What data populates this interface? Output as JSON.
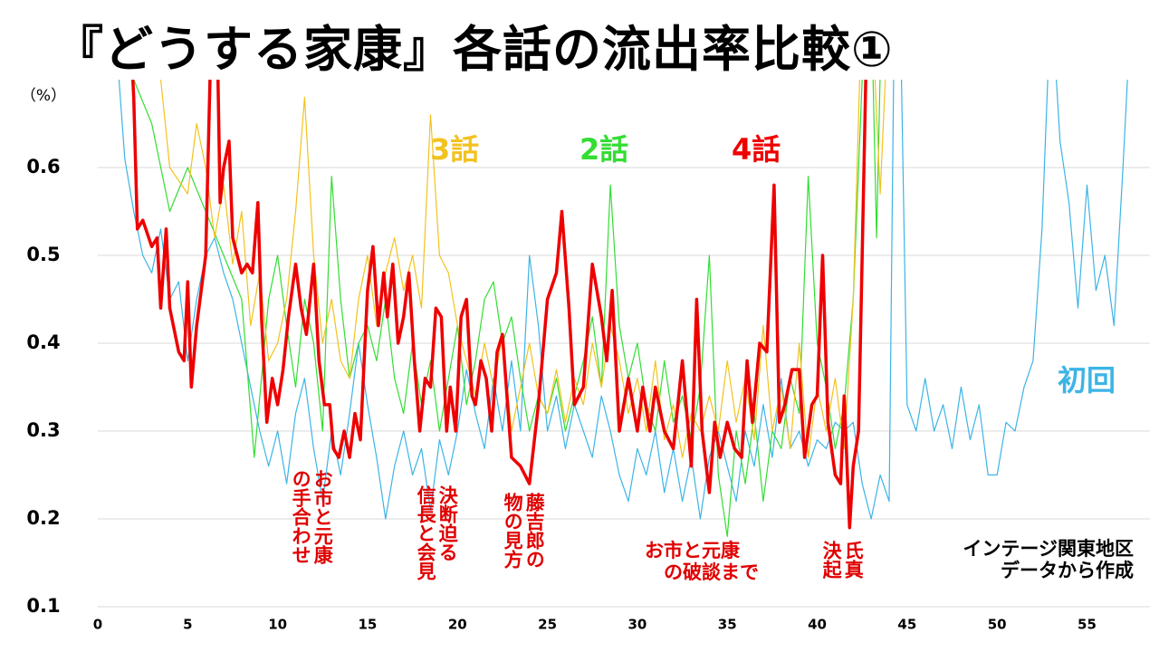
{
  "chart_data": {
    "type": "line",
    "title": "『どうする家康』各話の流出率比較①",
    "ylabel": "（%）",
    "xlim": [
      0,
      58.5
    ],
    "xticks": [
      0,
      5,
      10,
      15,
      20,
      25,
      30,
      35,
      40,
      45,
      50,
      55
    ],
    "ylim": [
      0.1,
      0.7
    ],
    "yticks": [
      0.1,
      0.2,
      0.3,
      0.4,
      0.5,
      0.6
    ],
    "grid": true,
    "annotations": [
      "お市と元康\nの手合わせ",
      "決断迫る\n信長と会見",
      "藤吉郎の\n物の見方",
      "お市と元康\n　の破談まで",
      "氏真\n決起",
      "インテージ関東地区\nデータから作成"
    ],
    "series": [
      {
        "name": "初回",
        "color": "#3cb4e6",
        "width": 1.2,
        "x": [
          1,
          1.5,
          2,
          2.5,
          3,
          3.5,
          4,
          4.5,
          5,
          5.5,
          6,
          6.5,
          7,
          7.5,
          8,
          8.5,
          9,
          9.5,
          10,
          10.5,
          11,
          11.5,
          12,
          12.5,
          13,
          13.5,
          14,
          14.5,
          15,
          15.5,
          16,
          16.5,
          17,
          17.5,
          18,
          18.5,
          19,
          19.5,
          20,
          20.5,
          21,
          21.5,
          22,
          22.5,
          23,
          23.5,
          24,
          24.5,
          25,
          25.5,
          26,
          26.5,
          27,
          27.5,
          28,
          28.5,
          29,
          29.5,
          30,
          30.5,
          31,
          31.5,
          32,
          32.5,
          33,
          33.5,
          34,
          34.5,
          35,
          35.5,
          36,
          36.5,
          37,
          37.5,
          38,
          38.5,
          39,
          39.5,
          40,
          40.5,
          41,
          41.5,
          42,
          42.5,
          43,
          43.5,
          44,
          44.3,
          44.6,
          45,
          45.5,
          46,
          46.5,
          47,
          47.5,
          48,
          48.5,
          49,
          49.5,
          50,
          50.5,
          51,
          51.5,
          52,
          52.5,
          53,
          53.5,
          54,
          54.5,
          55,
          55.5,
          56,
          56.5,
          57,
          57.5
        ],
        "values": [
          0.75,
          0.61,
          0.55,
          0.5,
          0.48,
          0.53,
          0.45,
          0.47,
          0.38,
          0.45,
          0.5,
          0.52,
          0.48,
          0.45,
          0.4,
          0.35,
          0.3,
          0.26,
          0.3,
          0.24,
          0.32,
          0.36,
          0.28,
          0.22,
          0.3,
          0.25,
          0.32,
          0.4,
          0.33,
          0.27,
          0.2,
          0.26,
          0.3,
          0.25,
          0.28,
          0.21,
          0.29,
          0.25,
          0.3,
          0.37,
          0.32,
          0.28,
          0.36,
          0.3,
          0.38,
          0.3,
          0.5,
          0.42,
          0.3,
          0.34,
          0.28,
          0.33,
          0.3,
          0.27,
          0.34,
          0.3,
          0.25,
          0.22,
          0.28,
          0.25,
          0.3,
          0.23,
          0.28,
          0.22,
          0.27,
          0.2,
          0.27,
          0.3,
          0.26,
          0.22,
          0.3,
          0.26,
          0.33,
          0.27,
          0.36,
          0.28,
          0.3,
          0.26,
          0.29,
          0.28,
          0.31,
          0.3,
          0.31,
          0.24,
          0.2,
          0.25,
          0.22,
          0.8,
          0.8,
          0.33,
          0.3,
          0.36,
          0.3,
          0.33,
          0.28,
          0.35,
          0.29,
          0.33,
          0.25,
          0.25,
          0.31,
          0.3,
          0.35,
          0.38,
          0.53,
          0.8,
          0.63,
          0.56,
          0.44,
          0.58,
          0.46,
          0.5,
          0.42,
          0.6,
          0.8
        ]
      },
      {
        "name": "2話",
        "color": "#33dd33",
        "width": 1.2,
        "x": [
          1,
          2,
          3,
          4,
          5,
          6,
          7,
          8,
          8.7,
          9.5,
          10,
          10.5,
          11,
          11.5,
          12,
          12.5,
          13,
          13.5,
          14,
          14.5,
          15,
          15.5,
          16,
          16.5,
          17,
          17.5,
          18,
          18.5,
          19,
          19.5,
          20,
          20.5,
          21,
          21.5,
          22,
          22.5,
          23,
          23.5,
          24,
          24.5,
          25,
          25.5,
          26,
          26.5,
          27,
          27.5,
          28,
          28.5,
          29,
          29.5,
          30,
          30.5,
          31,
          31.5,
          32,
          32.5,
          33,
          33.5,
          34,
          34.5,
          35,
          35.5,
          36,
          36.5,
          37,
          37.5,
          38,
          38.5,
          39,
          39.5,
          40,
          40.5,
          41,
          41.5,
          42,
          42.5,
          43,
          43.3,
          43.6
        ],
        "values": [
          0.8,
          0.7,
          0.65,
          0.55,
          0.6,
          0.55,
          0.5,
          0.45,
          0.27,
          0.45,
          0.5,
          0.42,
          0.35,
          0.45,
          0.4,
          0.3,
          0.59,
          0.45,
          0.36,
          0.4,
          0.42,
          0.38,
          0.45,
          0.36,
          0.32,
          0.4,
          0.33,
          0.38,
          0.3,
          0.36,
          0.42,
          0.33,
          0.38,
          0.45,
          0.47,
          0.4,
          0.43,
          0.36,
          0.3,
          0.34,
          0.32,
          0.36,
          0.3,
          0.34,
          0.38,
          0.43,
          0.35,
          0.58,
          0.42,
          0.36,
          0.4,
          0.33,
          0.3,
          0.38,
          0.31,
          0.34,
          0.29,
          0.35,
          0.5,
          0.25,
          0.18,
          0.3,
          0.24,
          0.32,
          0.22,
          0.3,
          0.28,
          0.36,
          0.32,
          0.59,
          0.4,
          0.35,
          0.28,
          0.33,
          0.45,
          0.7,
          0.8,
          0.52,
          0.8
        ]
      },
      {
        "name": "3話",
        "color": "#f2c21f",
        "width": 1.2,
        "x": [
          3,
          4,
          5,
          5.5,
          6,
          6.5,
          7,
          7.5,
          8,
          8.5,
          9,
          9.5,
          10,
          10.5,
          11,
          11.5,
          12,
          12.5,
          13,
          13.5,
          14,
          14.5,
          15,
          15.5,
          16,
          16.5,
          17,
          17.5,
          18,
          18.5,
          19,
          19.5,
          20,
          20.5,
          21,
          21.5,
          22,
          22.5,
          23,
          23.5,
          24,
          24.5,
          25,
          25.5,
          26,
          26.5,
          27,
          27.5,
          28,
          28.5,
          29,
          29.5,
          30,
          30.5,
          31,
          31.5,
          32,
          32.5,
          33,
          33.5,
          34,
          34.5,
          35,
          35.5,
          36,
          36.5,
          37,
          37.5,
          38,
          38.5,
          39,
          39.5,
          40,
          40.5,
          41,
          41.5,
          42,
          42.5,
          43,
          43.5,
          44
        ],
        "values": [
          0.8,
          0.6,
          0.57,
          0.65,
          0.6,
          0.52,
          0.58,
          0.49,
          0.55,
          0.42,
          0.48,
          0.38,
          0.4,
          0.45,
          0.55,
          0.68,
          0.5,
          0.4,
          0.45,
          0.38,
          0.36,
          0.45,
          0.5,
          0.42,
          0.48,
          0.52,
          0.46,
          0.5,
          0.44,
          0.66,
          0.5,
          0.48,
          0.42,
          0.38,
          0.34,
          0.4,
          0.35,
          0.41,
          0.3,
          0.35,
          0.4,
          0.34,
          0.32,
          0.37,
          0.31,
          0.36,
          0.33,
          0.4,
          0.35,
          0.42,
          0.38,
          0.32,
          0.36,
          0.3,
          0.38,
          0.29,
          0.33,
          0.27,
          0.32,
          0.3,
          0.34,
          0.3,
          0.38,
          0.31,
          0.36,
          0.29,
          0.42,
          0.3,
          0.35,
          0.28,
          0.4,
          0.27,
          0.35,
          0.3,
          0.36,
          0.28,
          0.45,
          0.8,
          0.8,
          0.57,
          0.8
        ]
      },
      {
        "name": "4話",
        "color": "#ee0000",
        "width": 3.5,
        "x": [
          1.7,
          2,
          2.2,
          2.5,
          3,
          3.3,
          3.5,
          3.8,
          4,
          4.5,
          4.8,
          5,
          5.2,
          5.5,
          6,
          6.3,
          6.6,
          6.8,
          7,
          7.3,
          7.5,
          8,
          8.3,
          8.6,
          8.9,
          9.1,
          9.4,
          9.7,
          10,
          10.3,
          10.6,
          11,
          11.3,
          11.6,
          12,
          12.3,
          12.6,
          12.9,
          13.1,
          13.4,
          13.7,
          14,
          14.3,
          14.6,
          15,
          15.3,
          15.6,
          15.9,
          16.1,
          16.4,
          16.7,
          17,
          17.3,
          17.6,
          17.9,
          18.2,
          18.5,
          18.8,
          19.1,
          19.4,
          19.6,
          19.9,
          20.2,
          20.5,
          20.8,
          21,
          21.3,
          21.6,
          21.9,
          22.2,
          22.5,
          23,
          23.5,
          24,
          24.5,
          25,
          25.5,
          25.8,
          26.2,
          26.5,
          27,
          27.5,
          28,
          28.3,
          28.6,
          29,
          29.5,
          30,
          30.3,
          30.7,
          31,
          31.5,
          32,
          32.5,
          33,
          33.3,
          33.6,
          34,
          34.3,
          34.6,
          35,
          35.4,
          35.8,
          36.1,
          36.4,
          36.8,
          37.2,
          37.6,
          37.9,
          38.2,
          38.6,
          39,
          39.3,
          39.7,
          40,
          40.3,
          40.6,
          41,
          41.3,
          41.5,
          41.8,
          42,
          42.3,
          42.5,
          42.8
        ],
        "values": [
          0.8,
          0.68,
          0.53,
          0.54,
          0.51,
          0.52,
          0.44,
          0.53,
          0.44,
          0.39,
          0.38,
          0.47,
          0.35,
          0.42,
          0.5,
          0.75,
          0.8,
          0.56,
          0.6,
          0.63,
          0.52,
          0.48,
          0.49,
          0.48,
          0.56,
          0.43,
          0.31,
          0.36,
          0.33,
          0.37,
          0.43,
          0.49,
          0.44,
          0.41,
          0.49,
          0.38,
          0.33,
          0.33,
          0.28,
          0.27,
          0.3,
          0.27,
          0.32,
          0.29,
          0.46,
          0.51,
          0.42,
          0.48,
          0.43,
          0.49,
          0.4,
          0.43,
          0.48,
          0.38,
          0.3,
          0.36,
          0.35,
          0.44,
          0.43,
          0.3,
          0.35,
          0.3,
          0.43,
          0.45,
          0.34,
          0.33,
          0.38,
          0.36,
          0.3,
          0.39,
          0.41,
          0.27,
          0.26,
          0.24,
          0.33,
          0.45,
          0.48,
          0.55,
          0.44,
          0.33,
          0.35,
          0.49,
          0.43,
          0.38,
          0.46,
          0.3,
          0.36,
          0.3,
          0.35,
          0.3,
          0.35,
          0.3,
          0.28,
          0.38,
          0.26,
          0.45,
          0.3,
          0.23,
          0.31,
          0.27,
          0.31,
          0.28,
          0.27,
          0.38,
          0.31,
          0.4,
          0.39,
          0.58,
          0.31,
          0.33,
          0.37,
          0.37,
          0.27,
          0.33,
          0.34,
          0.5,
          0.31,
          0.25,
          0.24,
          0.34,
          0.19,
          0.26,
          0.3,
          0.5,
          0.8
        ]
      }
    ]
  }
}
